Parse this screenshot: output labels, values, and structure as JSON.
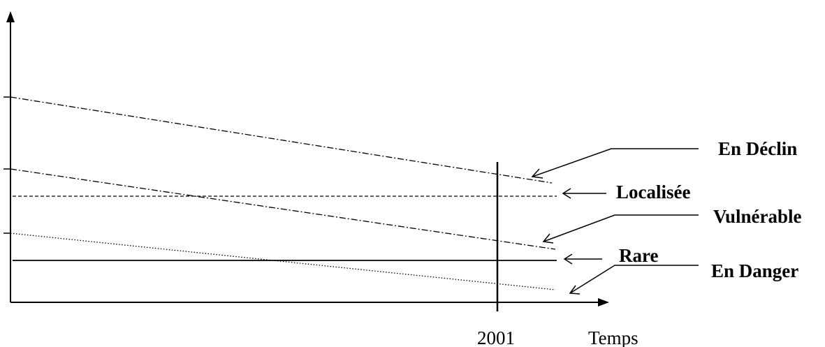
{
  "diagram": {
    "x_axis_label": "Temps",
    "marker_label": "2001",
    "categories": [
      {
        "key": "declin",
        "label": "En Déclin",
        "trend": "declining",
        "line_style": "dash-dot"
      },
      {
        "key": "localisee",
        "label": "Localisée",
        "trend": "constant",
        "line_style": "dashed"
      },
      {
        "key": "vulnerable",
        "label": "Vulnérable",
        "trend": "declining",
        "line_style": "dash-dot"
      },
      {
        "key": "rare",
        "label": "Rare",
        "trend": "constant",
        "line_style": "solid"
      },
      {
        "key": "danger",
        "label": "En Danger",
        "trend": "declining",
        "line_style": "dotted"
      }
    ]
  }
}
